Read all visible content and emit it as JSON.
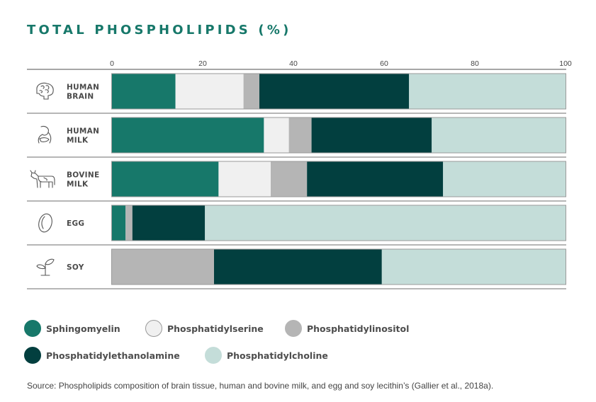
{
  "title": "TOTAL PHOSPHOLIPIDS (%)",
  "source": "Source: Phospholipids composition of brain tissue, human and bovine milk, and egg and soy lecithin’s (Gallier et al., 2018a).",
  "chart_data": {
    "type": "bar",
    "orientation": "horizontal",
    "stacked": true,
    "title": "TOTAL PHOSPHOLIPIDS (%)",
    "xlim": [
      0,
      100
    ],
    "xticks": [
      0,
      20,
      40,
      60,
      80,
      100
    ],
    "categories": [
      {
        "label_lines": [
          "HUMAN",
          "BRAIN"
        ],
        "icon": "brain-icon"
      },
      {
        "label_lines": [
          "HUMAN",
          "MILK"
        ],
        "icon": "breastfeeding-icon"
      },
      {
        "label_lines": [
          "BOVINE",
          "MILK"
        ],
        "icon": "cow-icon"
      },
      {
        "label_lines": [
          "EGG"
        ],
        "icon": "egg-icon"
      },
      {
        "label_lines": [
          "SOY"
        ],
        "icon": "soy-sprout-icon"
      }
    ],
    "series": [
      {
        "name": "Sphingomyelin",
        "color": "#17786a",
        "values": [
          14,
          33.5,
          23.5,
          3,
          0
        ]
      },
      {
        "name": "Phosphatidylserine",
        "color": "#f0f0f0",
        "values": [
          15,
          5.5,
          11.5,
          0,
          0
        ]
      },
      {
        "name": "Phosphatidylinositol",
        "color": "#b5b5b5",
        "values": [
          3.5,
          5,
          8,
          1.5,
          22.5
        ]
      },
      {
        "name": "Phosphatidylethanolamine",
        "color": "#023f3f",
        "values": [
          33,
          26.5,
          30,
          16,
          37
        ]
      },
      {
        "name": "Phosphatidylcholine",
        "color": "#c4ddd9",
        "values": [
          34.5,
          29.5,
          27,
          79.5,
          40.5
        ]
      }
    ],
    "legend_position": "bottom",
    "grid": false
  }
}
